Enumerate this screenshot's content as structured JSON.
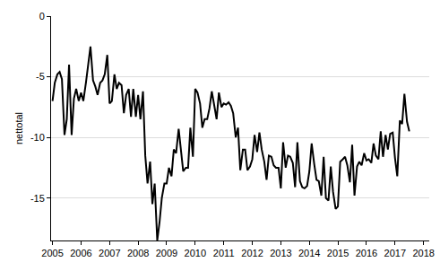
{
  "chart_data": {
    "type": "line",
    "y_label": "nettotal",
    "color": "#000000",
    "grid": true,
    "xlim": [
      2004.95,
      2018.2
    ],
    "xticks": [
      2005,
      2006,
      2007,
      2008,
      2009,
      2010,
      2011,
      2012,
      2013,
      2014,
      2015,
      2016,
      2017,
      2018
    ],
    "ylim": [
      -18.5,
      0
    ],
    "yticks": [
      -15,
      -10,
      -5,
      0
    ],
    "x": [
      2005.0,
      2005.08,
      2005.17,
      2005.25,
      2005.33,
      2005.42,
      2005.5,
      2005.58,
      2005.67,
      2005.75,
      2005.83,
      2005.92,
      2006.0,
      2006.08,
      2006.17,
      2006.25,
      2006.33,
      2006.42,
      2006.5,
      2006.58,
      2006.67,
      2006.75,
      2006.83,
      2006.92,
      2007.0,
      2007.08,
      2007.17,
      2007.25,
      2007.33,
      2007.42,
      2007.5,
      2007.58,
      2007.67,
      2007.75,
      2007.83,
      2007.92,
      2008.0,
      2008.08,
      2008.17,
      2008.25,
      2008.33,
      2008.42,
      2008.5,
      2008.58,
      2008.67,
      2008.75,
      2008.83,
      2008.92,
      2009.0,
      2009.08,
      2009.17,
      2009.25,
      2009.33,
      2009.42,
      2009.5,
      2009.58,
      2009.67,
      2009.75,
      2009.83,
      2009.92,
      2010.0,
      2010.08,
      2010.17,
      2010.25,
      2010.33,
      2010.42,
      2010.5,
      2010.58,
      2010.67,
      2010.75,
      2010.83,
      2010.92,
      2011.0,
      2011.08,
      2011.17,
      2011.25,
      2011.33,
      2011.42,
      2011.5,
      2011.58,
      2011.67,
      2011.75,
      2011.83,
      2011.92,
      2012.0,
      2012.08,
      2012.17,
      2012.25,
      2012.33,
      2012.42,
      2012.5,
      2012.58,
      2012.67,
      2012.75,
      2012.83,
      2012.92,
      2013.0,
      2013.08,
      2013.17,
      2013.25,
      2013.33,
      2013.42,
      2013.5,
      2013.58,
      2013.67,
      2013.75,
      2013.83,
      2013.92,
      2014.0,
      2014.08,
      2014.17,
      2014.25,
      2014.33,
      2014.42,
      2014.5,
      2014.58,
      2014.67,
      2014.75,
      2014.83,
      2014.92,
      2015.0,
      2015.08,
      2015.17,
      2015.25,
      2015.33,
      2015.42,
      2015.5,
      2015.58,
      2015.67,
      2015.75,
      2015.83,
      2015.92,
      2016.0,
      2016.08,
      2016.17,
      2016.25,
      2016.33,
      2016.42,
      2016.5,
      2016.58,
      2016.67,
      2016.75,
      2016.83,
      2016.92,
      2017.0,
      2017.08,
      2017.17,
      2017.25,
      2017.33,
      2017.42,
      2017.5
    ],
    "values": [
      -7,
      -5.5,
      -4.8,
      -4.6,
      -5.2,
      -9.8,
      -8.5,
      -4,
      -9.8,
      -6.8,
      -6,
      -7,
      -6.3,
      -7,
      -5.5,
      -4,
      -2.5,
      -5.3,
      -5.8,
      -6.5,
      -5.5,
      -5.3,
      -4.8,
      -3.2,
      -7.2,
      -7,
      -4.8,
      -6,
      -5.5,
      -5.7,
      -8,
      -6.5,
      -6,
      -8.3,
      -6,
      -8.3,
      -6.5,
      -8.5,
      -6.2,
      -11.5,
      -13.8,
      -12,
      -15.5,
      -13.8,
      -18.5,
      -17,
      -15,
      -13.8,
      -13.8,
      -12.5,
      -13.2,
      -11,
      -11.3,
      -9.3,
      -11.2,
      -12.8,
      -12.5,
      -12.5,
      -9.2,
      -11.6,
      -6,
      -6.3,
      -7.2,
      -9.2,
      -8.5,
      -8.5,
      -7.6,
      -6.2,
      -7.4,
      -8.5,
      -6.3,
      -7.5,
      -7.2,
      -7.3,
      -7.1,
      -7.4,
      -8,
      -10,
      -9.2,
      -12.7,
      -11,
      -11,
      -12.7,
      -12.4,
      -11.8,
      -9.8,
      -11.2,
      -9.6,
      -11,
      -12,
      -13.5,
      -11.5,
      -11.6,
      -12.3,
      -12.5,
      -12.5,
      -14.2,
      -10.4,
      -12.5,
      -11.5,
      -11.6,
      -12.1,
      -14.1,
      -10.4,
      -13.6,
      -14.1,
      -14.2,
      -14,
      -12.8,
      -10.5,
      -12.2,
      -13.5,
      -13.6,
      -14.8,
      -11.6,
      -15,
      -15.2,
      -12.4,
      -14.5,
      -15.9,
      -15.7,
      -12,
      -11.8,
      -11.6,
      -12.3,
      -13.7,
      -10.6,
      -14.8,
      -12.4,
      -12,
      -12.3,
      -11.3,
      -11.9,
      -11.8,
      -12.1,
      -10.5,
      -11.5,
      -11.8,
      -9.5,
      -11.6,
      -9.8,
      -11,
      -9.7,
      -9.6,
      -11.7,
      -13.2,
      -8.6,
      -8.9,
      -6.4,
      -8.7,
      -9.5
    ]
  }
}
